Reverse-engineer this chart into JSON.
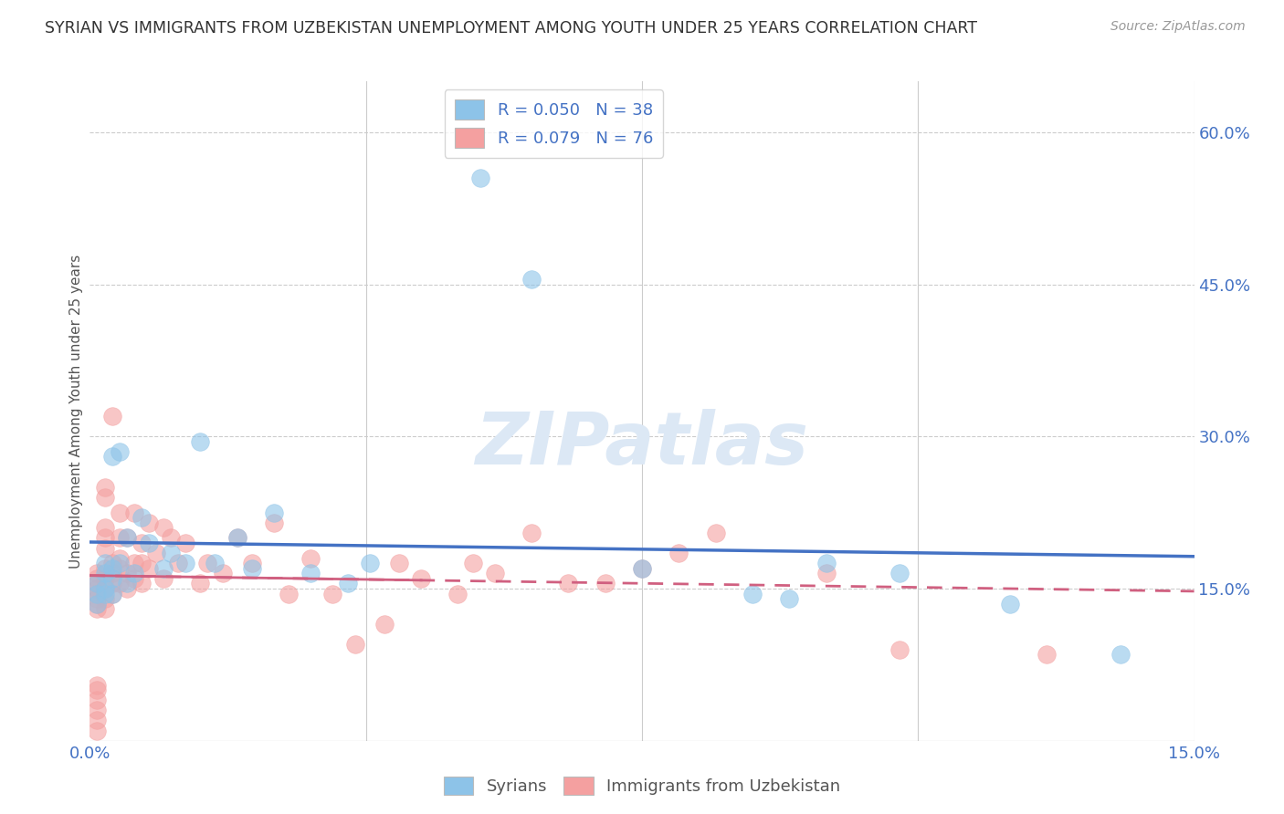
{
  "title": "SYRIAN VS IMMIGRANTS FROM UZBEKISTAN UNEMPLOYMENT AMONG YOUTH UNDER 25 YEARS CORRELATION CHART",
  "source": "Source: ZipAtlas.com",
  "ylabel_label": "Unemployment Among Youth under 25 years",
  "legend_label1": "Syrians",
  "legend_label2": "Immigrants from Uzbekistan",
  "R1": "0.050",
  "N1": "38",
  "R2": "0.079",
  "N2": "76",
  "color_syrians": "#8dc3e8",
  "color_uzbek": "#f4a0a0",
  "color_line_blue": "#4472c4",
  "color_line_pink": "#d06080",
  "color_text": "#4472c4",
  "watermark_color": "#dce8f5",
  "xlim": [
    0,
    0.15
  ],
  "ylim": [
    0,
    0.65
  ],
  "xticks": [
    0.0,
    0.15
  ],
  "yticks": [
    0.15,
    0.3,
    0.45,
    0.6
  ],
  "xticklabels": [
    "0.0%",
    "15.0%"
  ],
  "yticklabels": [
    "15.0%",
    "30.0%",
    "45.0%",
    "60.0%"
  ],
  "xgrid": [
    0.0375,
    0.075,
    0.1125,
    0.15
  ],
  "ygrid": [
    0.15,
    0.3,
    0.45,
    0.6
  ],
  "syrians_x": [
    0.001,
    0.001,
    0.001,
    0.002,
    0.002,
    0.002,
    0.002,
    0.003,
    0.003,
    0.003,
    0.003,
    0.004,
    0.004,
    0.005,
    0.005,
    0.006,
    0.007,
    0.008,
    0.01,
    0.011,
    0.013,
    0.015,
    0.017,
    0.02,
    0.022,
    0.025,
    0.03,
    0.035,
    0.038,
    0.053,
    0.06,
    0.075,
    0.09,
    0.095,
    0.1,
    0.11,
    0.125,
    0.14
  ],
  "syrians_y": [
    0.135,
    0.145,
    0.155,
    0.145,
    0.15,
    0.165,
    0.175,
    0.145,
    0.16,
    0.17,
    0.28,
    0.175,
    0.285,
    0.155,
    0.2,
    0.165,
    0.22,
    0.195,
    0.17,
    0.185,
    0.175,
    0.295,
    0.175,
    0.2,
    0.17,
    0.225,
    0.165,
    0.155,
    0.175,
    0.555,
    0.455,
    0.17,
    0.145,
    0.14,
    0.175,
    0.165,
    0.135,
    0.085
  ],
  "uzbek_x": [
    0.001,
    0.001,
    0.001,
    0.001,
    0.001,
    0.001,
    0.001,
    0.001,
    0.001,
    0.001,
    0.001,
    0.001,
    0.001,
    0.001,
    0.002,
    0.002,
    0.002,
    0.002,
    0.002,
    0.002,
    0.002,
    0.002,
    0.002,
    0.002,
    0.003,
    0.003,
    0.003,
    0.003,
    0.003,
    0.004,
    0.004,
    0.004,
    0.004,
    0.004,
    0.005,
    0.005,
    0.005,
    0.006,
    0.006,
    0.006,
    0.007,
    0.007,
    0.007,
    0.008,
    0.008,
    0.009,
    0.01,
    0.01,
    0.011,
    0.012,
    0.013,
    0.015,
    0.016,
    0.018,
    0.02,
    0.022,
    0.025,
    0.027,
    0.03,
    0.033,
    0.036,
    0.04,
    0.042,
    0.045,
    0.05,
    0.052,
    0.055,
    0.06,
    0.065,
    0.07,
    0.075,
    0.08,
    0.085,
    0.1,
    0.11,
    0.13
  ],
  "uzbek_y": [
    0.13,
    0.135,
    0.14,
    0.145,
    0.15,
    0.155,
    0.16,
    0.165,
    0.055,
    0.05,
    0.04,
    0.03,
    0.02,
    0.01,
    0.13,
    0.14,
    0.15,
    0.16,
    0.17,
    0.2,
    0.21,
    0.25,
    0.24,
    0.19,
    0.145,
    0.155,
    0.165,
    0.175,
    0.32,
    0.155,
    0.17,
    0.2,
    0.225,
    0.18,
    0.15,
    0.165,
    0.2,
    0.16,
    0.175,
    0.225,
    0.155,
    0.175,
    0.195,
    0.17,
    0.215,
    0.185,
    0.16,
    0.21,
    0.2,
    0.175,
    0.195,
    0.155,
    0.175,
    0.165,
    0.2,
    0.175,
    0.215,
    0.145,
    0.18,
    0.145,
    0.095,
    0.115,
    0.175,
    0.16,
    0.145,
    0.175,
    0.165,
    0.205,
    0.155,
    0.155,
    0.17,
    0.185,
    0.205,
    0.165,
    0.09,
    0.085
  ]
}
